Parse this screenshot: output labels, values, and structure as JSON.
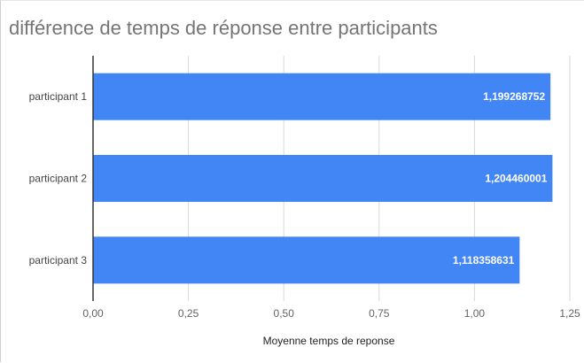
{
  "chart_data": {
    "type": "bar",
    "orientation": "horizontal",
    "title": "différence de temps de réponse entre participants",
    "xlabel": "Moyenne temps de reponse",
    "ylabel": "",
    "categories": [
      "participant 1",
      "participant 2",
      "participant 3"
    ],
    "values": [
      1.199268752,
      1.204460001,
      1.118358631
    ],
    "data_labels": [
      "1,199268752",
      "1,204460001",
      "1,118358631"
    ],
    "xlim": [
      0,
      1.25
    ],
    "x_ticks": [
      0,
      0.25,
      0.5,
      0.75,
      1.0,
      1.25
    ],
    "x_tick_labels": [
      "0,00",
      "0,25",
      "0,50",
      "0,75",
      "1,00",
      "1,25"
    ],
    "grid": true,
    "legend": "none",
    "colors": {
      "bar": "#4285f4",
      "grid": "#d9d9d9",
      "axis": "#333333"
    }
  }
}
